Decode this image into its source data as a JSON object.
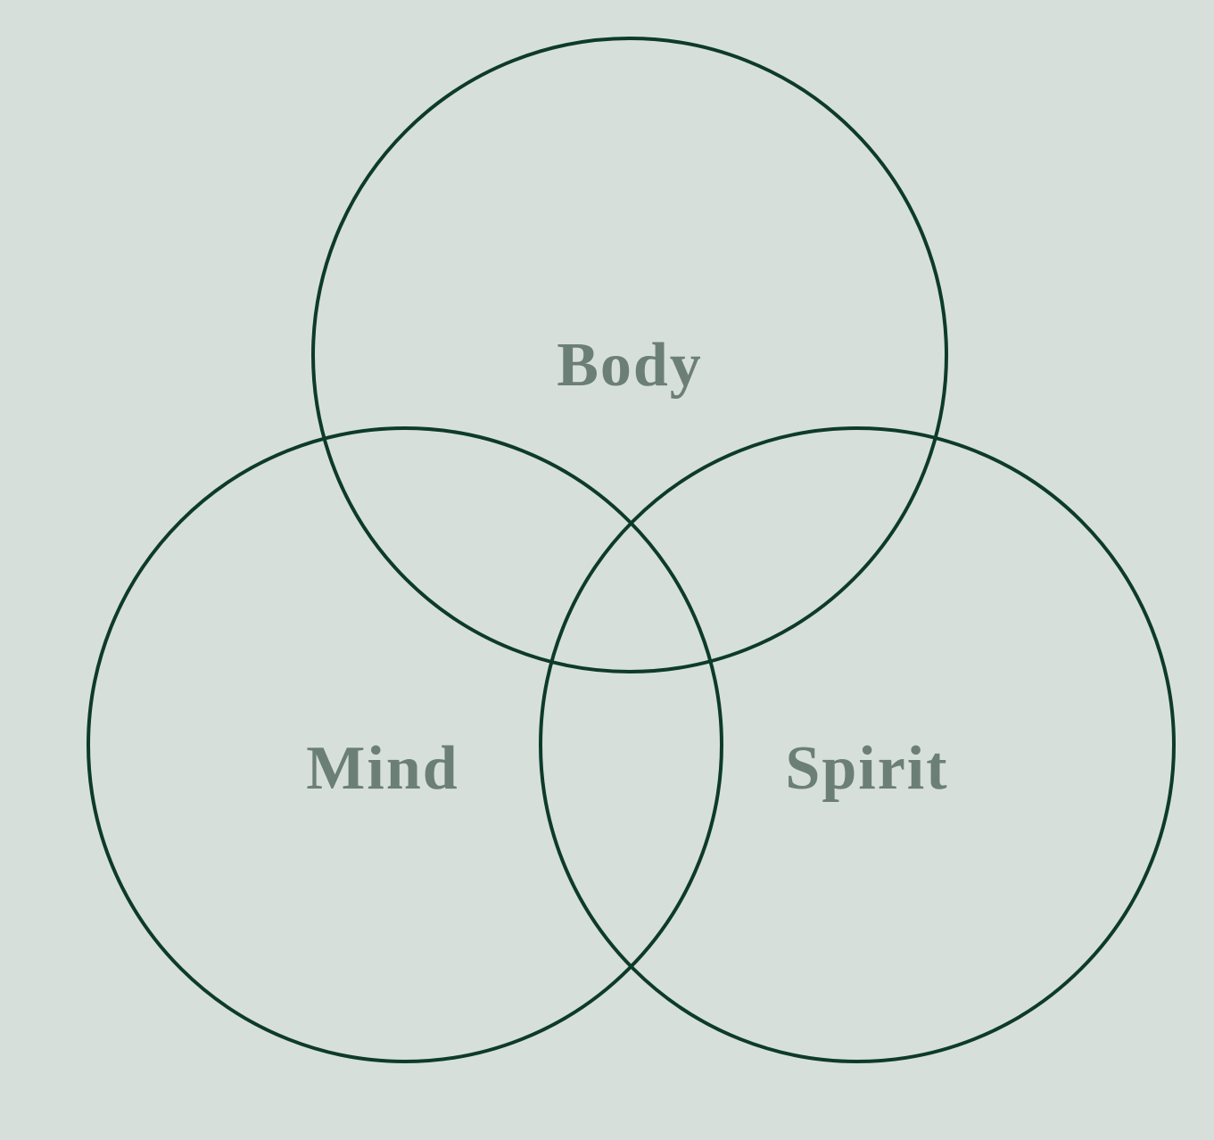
{
  "diagram": {
    "type": "venn",
    "sets": [
      {
        "id": "body",
        "label": "Body"
      },
      {
        "id": "mind",
        "label": "Mind"
      },
      {
        "id": "spirit",
        "label": "Spirit"
      }
    ]
  },
  "colors": {
    "background": "#d7dfdb",
    "outline": "#0d3b2b",
    "label": "#6b7f77"
  }
}
